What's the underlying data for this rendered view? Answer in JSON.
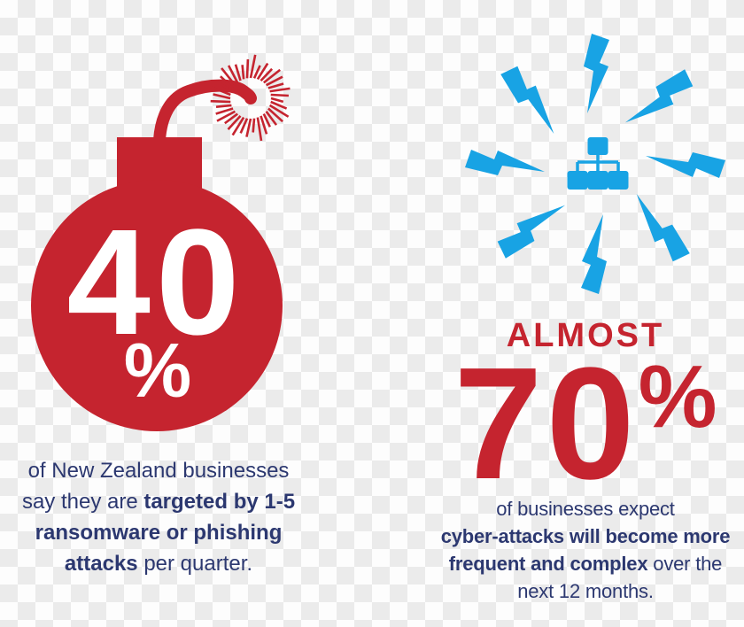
{
  "left_stat": {
    "value": "40",
    "percent": "%",
    "caption": {
      "line1": "of New Zealand businesses",
      "line2_normal": "say they are ",
      "line2_bold": "targeted by 1-5",
      "line3_bold": "ransomware or phishing",
      "line4_bold": "attacks",
      "line4_normal": " per quarter."
    }
  },
  "right_stat": {
    "label": "ALMOST",
    "value": "70",
    "percent": "%",
    "caption": {
      "line1": "of businesses expect",
      "line2_bold": "cyber-attacks will become more",
      "line3_bold": "frequent and complex",
      "line3_normal": " over the",
      "line4": "next 12 months."
    }
  },
  "icons": {
    "bomb": "bomb-icon",
    "spark": "fuse-spark-icon",
    "lightning": "lightning-bolt-icon",
    "network": "network-hierarchy-icon"
  },
  "colors": {
    "red": "#C5242F",
    "blue": "#18A3E4",
    "navy": "#2C3870",
    "checker_light": "#FDFDFD",
    "checker_gray": "#EBEBEB"
  }
}
